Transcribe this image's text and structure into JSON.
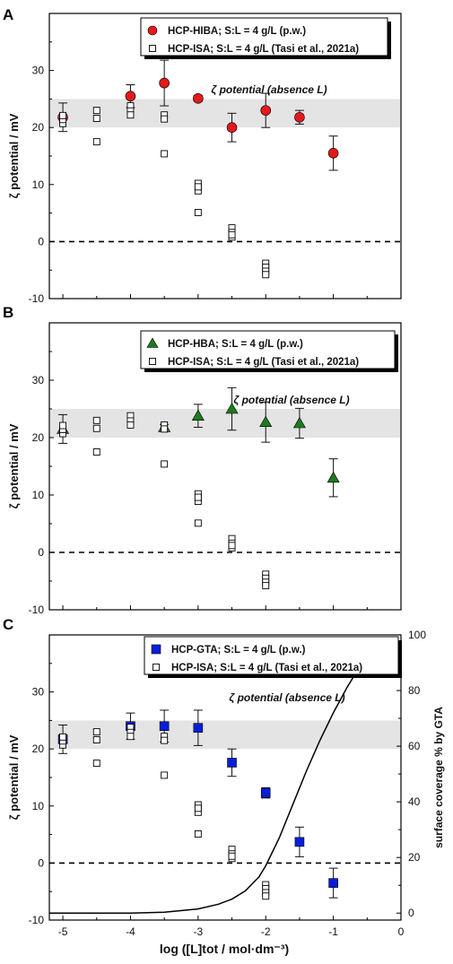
{
  "chart_data": [
    {
      "type": "scatter",
      "panel_label": "A",
      "ylabel": "ζ potential / mV",
      "ylim": [
        -10,
        40
      ],
      "xlim": [
        -5.2,
        0
      ],
      "yticks": [
        -10,
        0,
        10,
        20,
        30
      ],
      "band": {
        "y": [
          20,
          25
        ],
        "label": "ζ potential (absence L)"
      },
      "zero_line": true,
      "legend": [
        "HCP-HIBA; S:L = 4 g/L (p.w.)",
        "HCP-ISA; S:L = 4 g/L (Tasi et al., 2021a)"
      ],
      "series": [
        {
          "name": "HCP-HIBA; S:L = 4 g/L (p.w.)",
          "marker": "circle",
          "color": "#e41a1c",
          "x": [
            -5,
            -4,
            -3.5,
            -3,
            -2.5,
            -2,
            -1.5,
            -1
          ],
          "y": [
            21.8,
            25.5,
            27.8,
            25.1,
            20,
            23,
            21.8,
            15.5
          ],
          "err": [
            2.5,
            2,
            4,
            0.5,
            2.5,
            3,
            1.2,
            3
          ]
        },
        {
          "name": "HCP-ISA; S:L = 4 g/L (Tasi et al., 2021a)",
          "marker": "open-square",
          "color": "#000000",
          "x": [
            -5,
            -5,
            -5,
            -4.5,
            -4.5,
            -4.5,
            -4,
            -4,
            -4,
            -3.5,
            -3.5,
            -3.5,
            -3,
            -3,
            -3,
            -3,
            -2.5,
            -2.5,
            -2.5,
            -2.5,
            -2,
            -2,
            -2,
            -2
          ],
          "y": [
            20.7,
            21.4,
            22.1,
            23,
            21.6,
            17.5,
            23.8,
            22.9,
            22.2,
            22.2,
            21.5,
            15.4,
            10.2,
            8.9,
            5.1,
            9.6,
            2.4,
            1.6,
            0.8,
            1.2,
            -3.8,
            -4.5,
            -5.2,
            -5.8
          ]
        }
      ]
    },
    {
      "type": "scatter",
      "panel_label": "B",
      "ylabel": "ζ potential / mV",
      "ylim": [
        -10,
        40
      ],
      "xlim": [
        -5.2,
        0
      ],
      "yticks": [
        -10,
        0,
        10,
        20,
        30
      ],
      "band": {
        "y": [
          20,
          25
        ],
        "label": "ζ potential (absence L)"
      },
      "zero_line": true,
      "legend": [
        "HCP-HBA; S:L = 4 g/L (p.w.)",
        "HCP-ISA; S:L = 4 g/L (Tasi et al., 2021a)"
      ],
      "series": [
        {
          "name": "HCP-HBA; S:L = 4 g/L (p.w.)",
          "marker": "triangle",
          "color": "#1f7a1f",
          "x": [
            -5,
            -3.5,
            -3,
            -2.5,
            -2,
            -1.5,
            -1
          ],
          "y": [
            21.5,
            21.8,
            23.8,
            25,
            22.7,
            22.5,
            13
          ],
          "err": [
            2.5,
            0.5,
            2,
            3.7,
            3.5,
            2.6,
            3.3
          ]
        },
        {
          "name": "HCP-ISA; S:L = 4 g/L (Tasi et al., 2021a)",
          "marker": "open-square",
          "color": "#000000",
          "x": [
            -5,
            -5,
            -5,
            -4.5,
            -4.5,
            -4.5,
            -4,
            -4,
            -4,
            -3.5,
            -3.5,
            -3.5,
            -3,
            -3,
            -3,
            -3,
            -2.5,
            -2.5,
            -2.5,
            -2.5,
            -2,
            -2,
            -2,
            -2
          ],
          "y": [
            20.7,
            21.4,
            22.1,
            23,
            21.6,
            17.5,
            23.8,
            22.9,
            22.2,
            22.2,
            21.5,
            15.4,
            10.2,
            8.9,
            5.1,
            9.6,
            2.4,
            1.6,
            0.8,
            1.2,
            -3.8,
            -4.5,
            -5.2,
            -5.8
          ]
        }
      ]
    },
    {
      "type": "scatter",
      "panel_label": "C",
      "ylabel": "ζ potential / mV",
      "ylabel_right": "surface coverage % by GTA",
      "xlabel": "log ([L]tot / mol·dm⁻³)",
      "ylim": [
        -10,
        40
      ],
      "y2lim": [
        -2.5,
        100
      ],
      "xlim": [
        -5.2,
        0
      ],
      "yticks": [
        -10,
        0,
        10,
        20,
        30
      ],
      "y2ticks": [
        0,
        20,
        40,
        60,
        80,
        100
      ],
      "xticks": [
        -5,
        -4,
        -3,
        -2,
        -1,
        0
      ],
      "band": {
        "y": [
          20,
          25
        ],
        "label": "ζ potential (absence L)"
      },
      "zero_line": true,
      "legend": [
        "HCP-GTA; S:L = 4 g/L (p.w.)",
        "HCP-ISA; S:L = 4 g/L (Tasi et al., 2021a)"
      ],
      "series": [
        {
          "name": "HCP-GTA; S:L = 4 g/L (p.w.)",
          "marker": "square",
          "color": "#0a1ed8",
          "x": [
            -5,
            -4,
            -3.5,
            -3,
            -2.5,
            -2,
            -1.5,
            -1
          ],
          "y": [
            21.7,
            24,
            24,
            23.7,
            17.6,
            12.3,
            3.7,
            -3.5
          ],
          "err": [
            2.5,
            2.3,
            2.8,
            3.1,
            2.4,
            0.9,
            2.6,
            2.6
          ]
        },
        {
          "name": "HCP-ISA; S:L = 4 g/L (Tasi et al., 2021a)",
          "marker": "open-square",
          "color": "#000000",
          "x": [
            -5,
            -5,
            -5,
            -4.5,
            -4.5,
            -4.5,
            -4,
            -4,
            -4,
            -3.5,
            -3.5,
            -3.5,
            -3,
            -3,
            -3,
            -3,
            -2.5,
            -2.5,
            -2.5,
            -2.5,
            -2,
            -2,
            -2,
            -2
          ],
          "y": [
            20.7,
            21.4,
            22.1,
            23,
            21.6,
            17.5,
            23.8,
            22.9,
            22.2,
            22.2,
            21.5,
            15.4,
            10.2,
            8.9,
            5.1,
            9.6,
            2.4,
            1.6,
            0.8,
            1.2,
            -3.8,
            -4.5,
            -5.2,
            -5.8
          ]
        },
        {
          "axis": "right",
          "line": true,
          "x": [
            -5.2,
            -4,
            -3.5,
            -3,
            -2.7,
            -2.5,
            -2.3,
            -2.1,
            -2,
            -1.8,
            -1.6,
            -1.4,
            -1.2,
            -1,
            -0.8,
            -0.6,
            -0.4,
            -0.2
          ],
          "y": [
            0,
            0,
            0.3,
            1.5,
            3.2,
            5,
            8,
            13,
            17,
            27,
            39,
            51,
            62,
            72,
            81,
            89,
            95,
            99
          ]
        }
      ]
    }
  ]
}
